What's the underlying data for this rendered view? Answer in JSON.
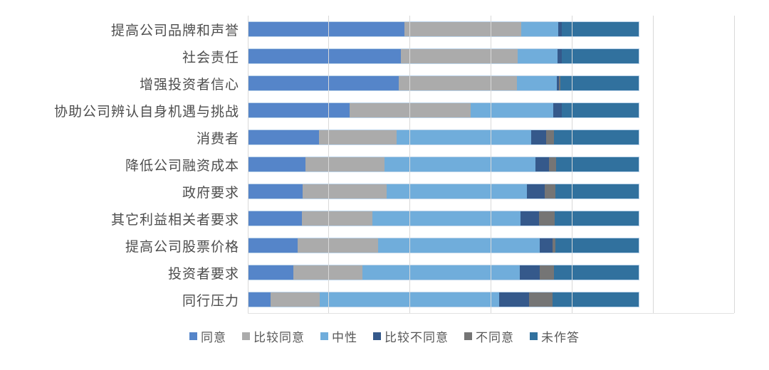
{
  "chart_data": {
    "type": "bar",
    "subtype": "horizontal-stacked",
    "title": "",
    "xlabel": "",
    "ylabel": "",
    "grid": true,
    "gridline_color": "#d9d9d9",
    "gridline_count": 7,
    "bar_total_fraction_of_axis": 0.803,
    "legend_position": "bottom",
    "categories": [
      "提高公司品牌和声誉",
      "社会责任",
      "增强投资者信心",
      "协助公司辨认自身机遇与挑战",
      "消费者",
      "降低公司融资成本",
      "政府要求",
      "其它利益相关者要求",
      "提高公司股票价格",
      "投资者要求",
      "同行压力"
    ],
    "values_unit": "percent of row total, estimated from pixels",
    "series": [
      {
        "name": "同意",
        "slug": "agree",
        "color": "#5585c9",
        "values": [
          39.9,
          39.1,
          38.4,
          25.8,
          18.0,
          14.6,
          13.8,
          13.6,
          12.5,
          11.5,
          5.6
        ]
      },
      {
        "name": "比较同意",
        "slug": "somewhat-agree",
        "color": "#ababab",
        "values": [
          29.9,
          29.9,
          30.3,
          31.0,
          19.9,
          20.3,
          21.6,
          18.1,
          20.7,
          17.6,
          12.7
        ]
      },
      {
        "name": "中性",
        "slug": "neutral",
        "color": "#70addb",
        "values": [
          9.5,
          10.1,
          10.3,
          21.2,
          34.5,
          38.5,
          35.9,
          38.0,
          41.3,
          40.3,
          45.9
        ]
      },
      {
        "name": "比较不同意",
        "slug": "somewhat-disagree",
        "color": "#35598b",
        "values": [
          0.9,
          1.1,
          0.5,
          2.2,
          3.9,
          3.5,
          4.6,
          4.6,
          3.3,
          5.1,
          7.6
        ]
      },
      {
        "name": "不同意",
        "slug": "disagree",
        "color": "#757575",
        "values": [
          0,
          0,
          0.4,
          0,
          2.0,
          1.8,
          2.7,
          4.1,
          0.8,
          3.7,
          6.0
        ]
      },
      {
        "name": "未作答",
        "slug": "no-answer",
        "color": "#31719e",
        "values": [
          19.8,
          19.8,
          20.1,
          19.8,
          21.7,
          21.3,
          21.4,
          21.6,
          21.4,
          21.8,
          22.2
        ]
      }
    ]
  },
  "legend": {
    "items": [
      {
        "label": "同意",
        "color": "#5585c9"
      },
      {
        "label": "比较同意",
        "color": "#ababab"
      },
      {
        "label": "中性",
        "color": "#70addb"
      },
      {
        "label": "比较不同意",
        "color": "#35598b"
      },
      {
        "label": "不同意",
        "color": "#757575"
      },
      {
        "label": "未作答",
        "color": "#31719e"
      }
    ]
  },
  "colors": {
    "background": "#ffffff",
    "category_label_text": "#4d4d4d",
    "legend_text": "#595959",
    "gridline": "#d9d9d9",
    "bar_outline": "#bcd4ea"
  }
}
